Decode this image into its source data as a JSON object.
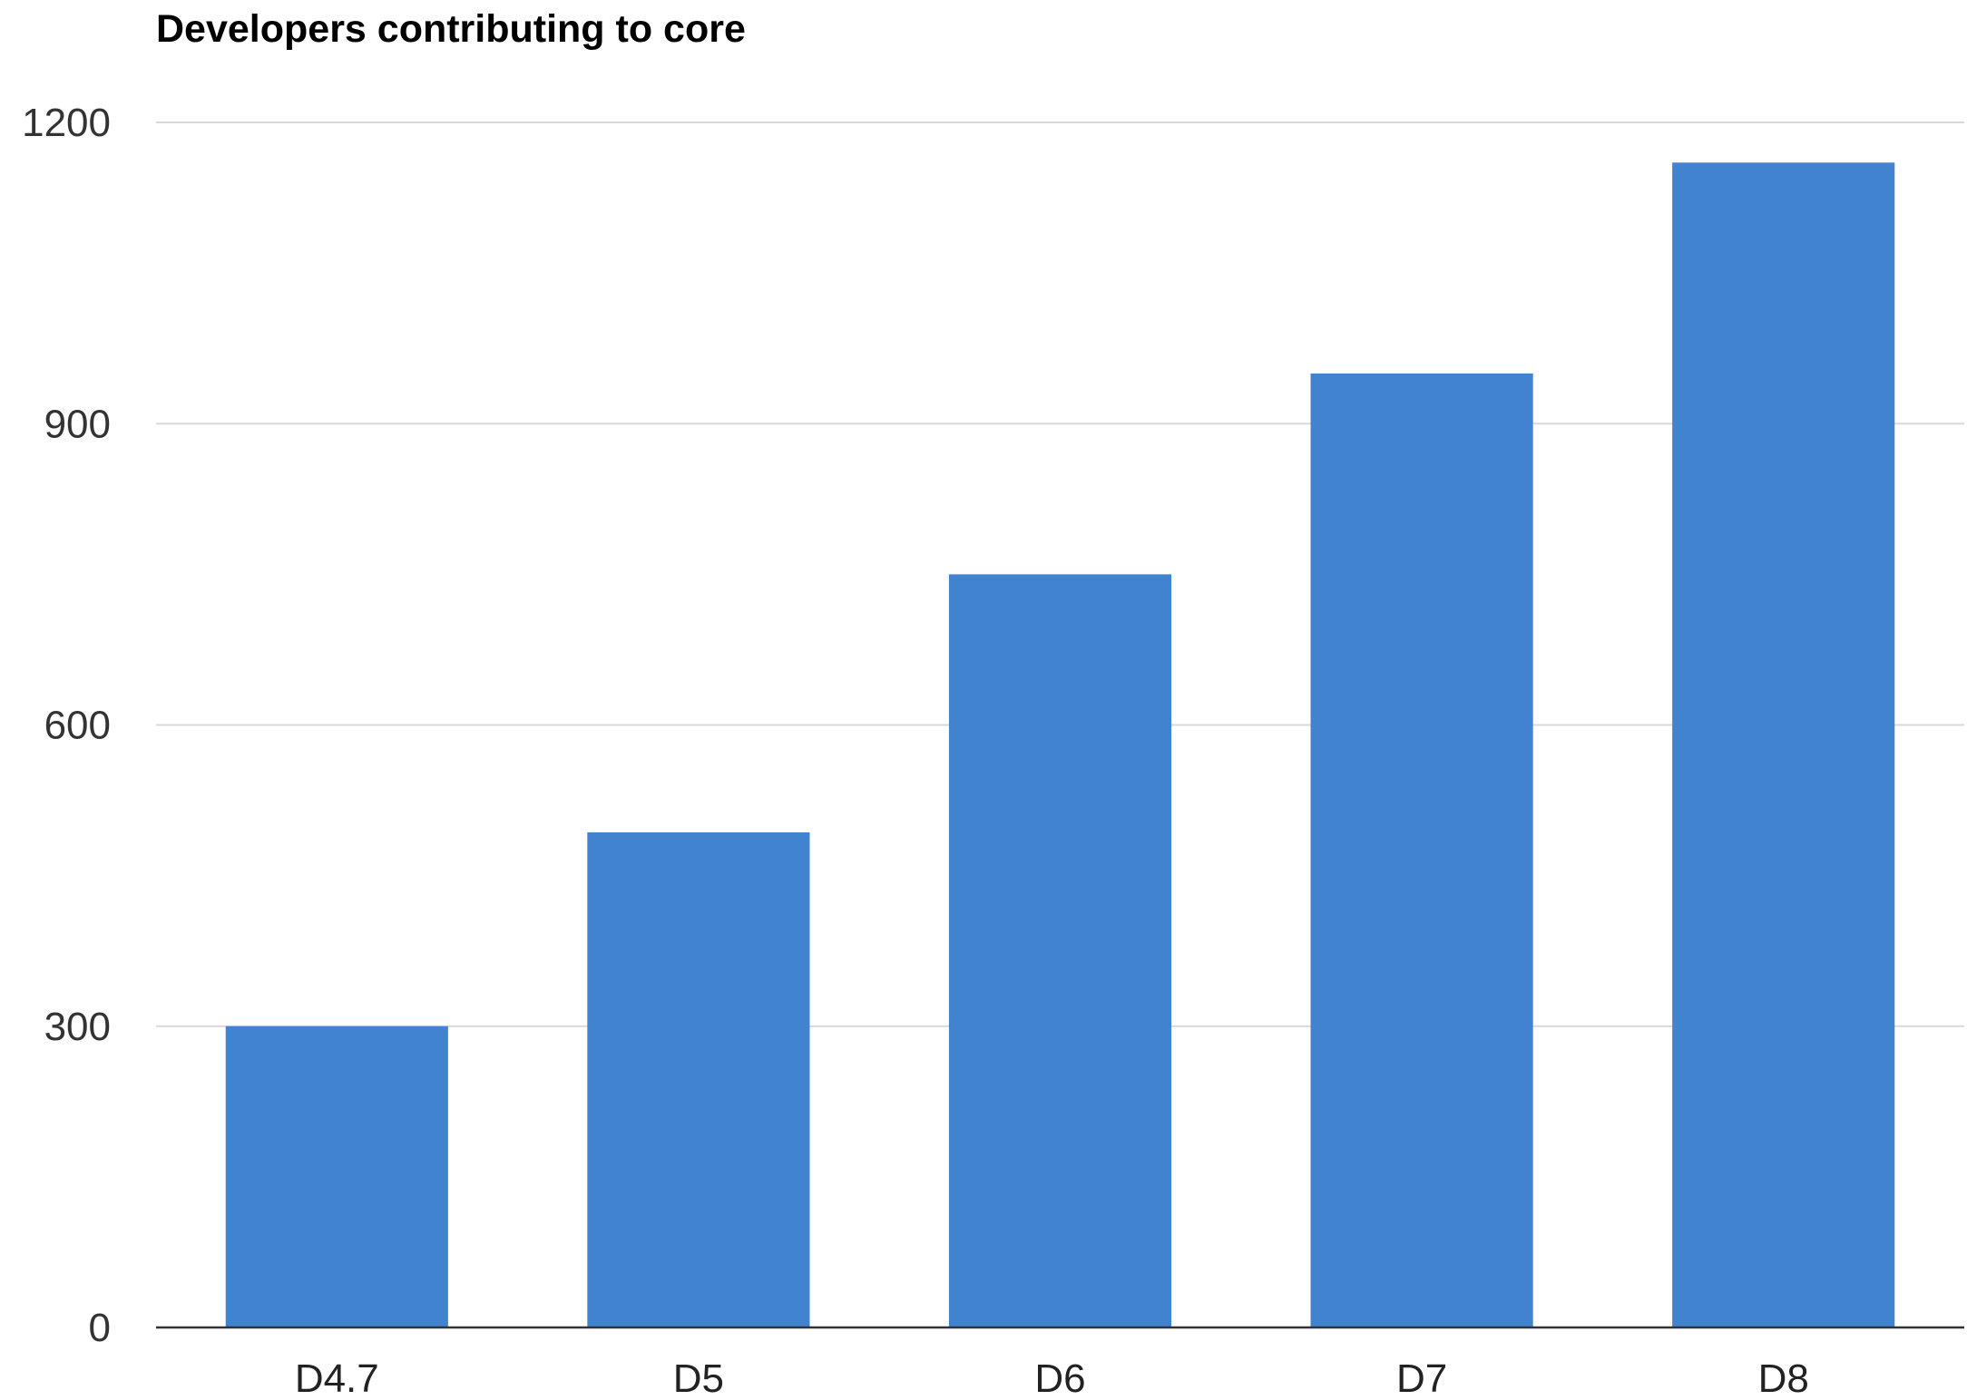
{
  "chart_data": {
    "type": "bar",
    "title": "Developers contributing to core",
    "xlabel": "",
    "ylabel": "",
    "categories": [
      "D4.7",
      "D5",
      "D6",
      "D7",
      "D8"
    ],
    "series": [
      {
        "values": [
          300,
          493,
          750,
          950,
          1160
        ]
      }
    ],
    "ylim": [
      0,
      1200
    ],
    "yticks": [
      0,
      300,
      600,
      900,
      1200
    ],
    "ytick_labels": [
      "0",
      "300",
      "600",
      "900",
      "1200"
    ],
    "grid": true,
    "legend": "none",
    "colors": {
      "bar": "#4283d0",
      "grid": "#d9d9d9",
      "axis": "#333333"
    }
  }
}
